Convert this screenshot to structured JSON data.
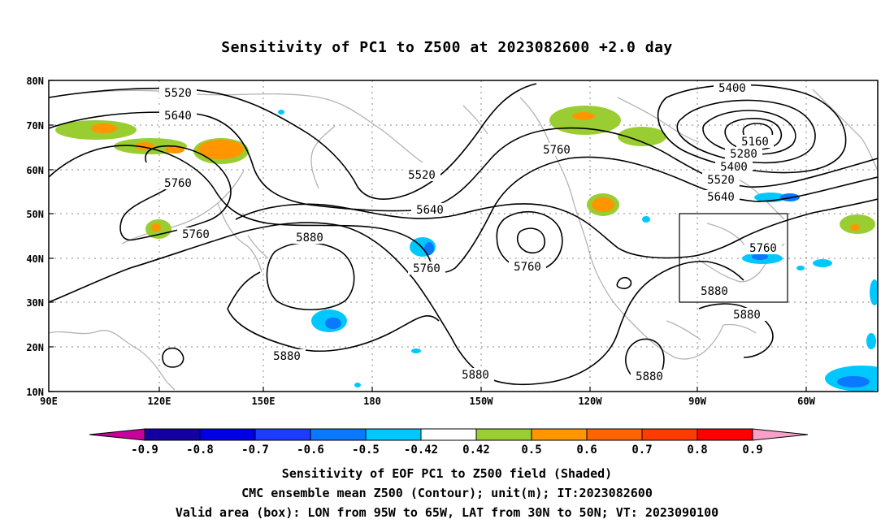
{
  "title": "Sensitivity of PC1 to Z500 at 2023082600 +2.0 day",
  "map": {
    "lat_labels": [
      "80N",
      "70N",
      "60N",
      "50N",
      "40N",
      "30N",
      "20N",
      "10N"
    ],
    "lon_labels": [
      "90E",
      "120E",
      "150E",
      "180",
      "150W",
      "120W",
      "90W",
      "60W"
    ],
    "coastline_color": "#b4b4b4",
    "contour_color": "#000000",
    "grid": "dotted",
    "contour_labels": [
      "5520",
      "5640",
      "5760",
      "5880",
      "5400",
      "5160",
      "5280"
    ],
    "valid_box": {
      "lon_from": "95W",
      "lon_to": "65W",
      "lat_from": "30N",
      "lat_to": "50N"
    }
  },
  "colorbar": {
    "labels": [
      "-0.9",
      "-0.8",
      "-0.7",
      "-0.6",
      "-0.5",
      "-0.42",
      "0.42",
      "0.5",
      "0.6",
      "0.7",
      "0.8",
      "0.9"
    ],
    "colors": [
      "#c8009c",
      "#1400a0",
      "#0000e6",
      "#1e3cff",
      "#0a78ff",
      "#00c8ff",
      "#ffffff",
      "#9acd32",
      "#ff9600",
      "#ff6400",
      "#ff3c00",
      "#ff0000",
      "#f8a0c8"
    ]
  },
  "captions": {
    "line1": "Sensitivity of EOF PC1 to Z500 field (Shaded)",
    "line2": "CMC ensemble mean Z500 (Contour); unit(m); IT:2023082600",
    "line3": "Valid area (box): LON from 95W to 65W, LAT from 30N to 50N; VT: 2023090100"
  }
}
